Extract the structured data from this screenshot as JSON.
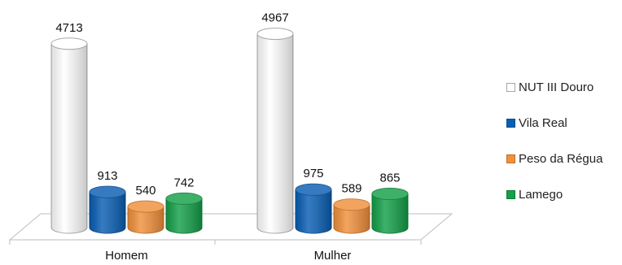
{
  "chart_data": {
    "type": "bar",
    "style": "3d-cylinder",
    "categories": [
      "Homem",
      "Mulher"
    ],
    "series": [
      {
        "name": "NUT III Douro",
        "values": [
          4713,
          4967
        ],
        "color": "#ffffff",
        "edge": "#a6a6a6"
      },
      {
        "name": "Vila Real",
        "values": [
          913,
          975
        ],
        "color": "#0a5fb4",
        "edge": "#0a4a8c"
      },
      {
        "name": "Peso da Régua",
        "values": [
          540,
          589
        ],
        "color": "#f0913c",
        "edge": "#c56f22"
      },
      {
        "name": "Lamego",
        "values": [
          742,
          865
        ],
        "color": "#14a049",
        "edge": "#0d7a37"
      }
    ],
    "ylim": [
      0,
      5000
    ],
    "grid": false,
    "legend_position": "right",
    "title": "",
    "xlabel": "",
    "ylabel": ""
  }
}
